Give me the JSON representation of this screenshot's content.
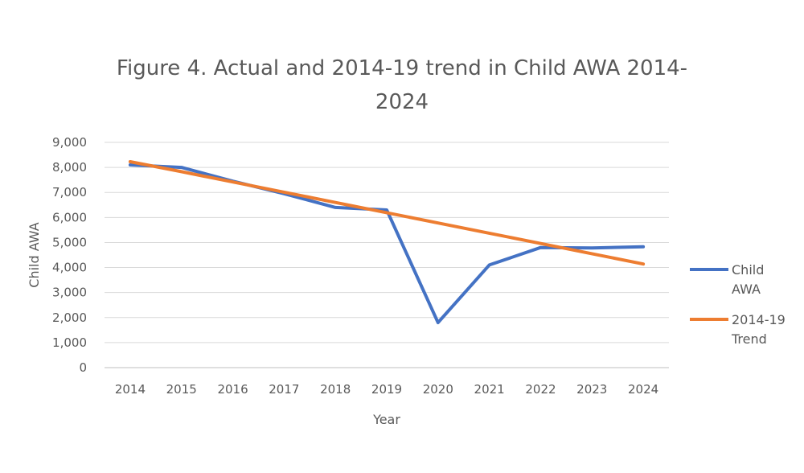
{
  "chart_data": {
    "type": "line",
    "title_lines": [
      "Figure 4. Actual and 2014-19 trend in Child  AWA 2014-",
      "2024"
    ],
    "xlabel": "Year",
    "ylabel": "Child AWA",
    "categories": [
      "2014",
      "2015",
      "2016",
      "2017",
      "2018",
      "2019",
      "2020",
      "2021",
      "2022",
      "2023",
      "2024"
    ],
    "ylim": [
      0,
      9000
    ],
    "yticks": [
      0,
      1000,
      2000,
      3000,
      4000,
      5000,
      6000,
      7000,
      8000,
      9000
    ],
    "ytick_labels": [
      "0",
      "1,000",
      "2,000",
      "3,000",
      "4,000",
      "5,000",
      "6,000",
      "7,000",
      "8,000",
      "9,000"
    ],
    "grid": true,
    "legend_position": "right",
    "series": [
      {
        "name": "Child AWA",
        "legend_lines": [
          "Child",
          "AWA"
        ],
        "color": "#4472C4",
        "values": [
          8100,
          8000,
          7450,
          6950,
          6400,
          6300,
          1800,
          4100,
          4800,
          4780,
          4830
        ]
      },
      {
        "name": "2014-19 Trend",
        "legend_lines": [
          "2014-19",
          "Trend"
        ],
        "color": "#ED7D31",
        "values": [
          8230,
          7830,
          7420,
          7010,
          6600,
          6190,
          5780,
          5370,
          4960,
          4550,
          4140
        ]
      }
    ]
  }
}
